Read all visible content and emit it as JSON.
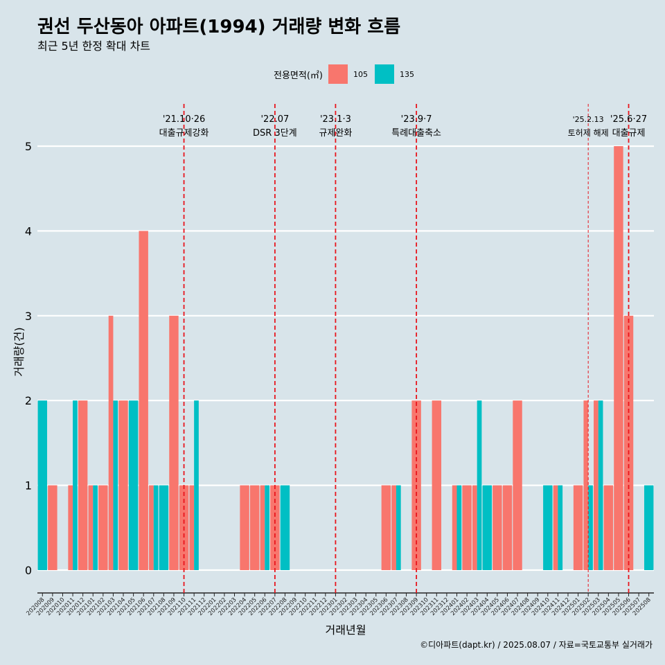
{
  "title": "권선 두산동아 아파트(1994) 거래량 변화 흐름",
  "subtitle": "최근 5년 한정 확대 차트",
  "legend": {
    "title": "전용면적(㎡)",
    "items": [
      {
        "label": "105",
        "color": "#f8766d"
      },
      {
        "label": "135",
        "color": "#00bfc4"
      }
    ]
  },
  "caption": "©디아파트(dapt.kr) / 2025.08.07 / 자료=국토교통부 실거래가",
  "chart_data": {
    "type": "bar",
    "stacking": "dodge",
    "xlabel": "거래년월",
    "ylabel": "거래량(건)",
    "ylim": [
      0,
      5
    ],
    "yticks": [
      0,
      1,
      2,
      3,
      4,
      5
    ],
    "grid": "horizontal",
    "legend_position": "top",
    "background": "#d8e4ea",
    "categories": [
      "202008",
      "202009",
      "202010",
      "202011",
      "202012",
      "202101",
      "202102",
      "202103",
      "202104",
      "202105",
      "202106",
      "202107",
      "202108",
      "202109",
      "202110",
      "202111",
      "202112",
      "202201",
      "202202",
      "202203",
      "202204",
      "202205",
      "202206",
      "202207",
      "202208",
      "202209",
      "202210",
      "202211",
      "202212",
      "202301",
      "202302",
      "202303",
      "202304",
      "202305",
      "202306",
      "202307",
      "202308",
      "202309",
      "202310",
      "202311",
      "202312",
      "202401",
      "202402",
      "202403",
      "202404",
      "202405",
      "202406",
      "202407",
      "202408",
      "202409",
      "202410",
      "202411",
      "202412",
      "202501",
      "202502",
      "202503",
      "202504",
      "202505",
      "202506",
      "202507",
      "202508"
    ],
    "series": [
      {
        "name": "105",
        "color": "#f8766d",
        "values": [
          0,
          1,
          0,
          1,
          2,
          1,
          1,
          3,
          2,
          0,
          4,
          1,
          0,
          3,
          1,
          1,
          0,
          0,
          0,
          0,
          1,
          1,
          1,
          1,
          0,
          0,
          0,
          0,
          0,
          0,
          0,
          0,
          0,
          0,
          1,
          1,
          0,
          2,
          0,
          2,
          0,
          1,
          1,
          1,
          0,
          1,
          1,
          2,
          0,
          0,
          0,
          1,
          0,
          1,
          2,
          2,
          1,
          5,
          3,
          0,
          0
        ]
      },
      {
        "name": "135",
        "color": "#00bfc4",
        "values": [
          2,
          0,
          0,
          2,
          0,
          1,
          0,
          2,
          0,
          2,
          0,
          1,
          1,
          0,
          0,
          2,
          0,
          0,
          0,
          0,
          0,
          0,
          1,
          0,
          1,
          0,
          0,
          0,
          0,
          0,
          0,
          0,
          0,
          0,
          0,
          1,
          0,
          0,
          0,
          0,
          0,
          1,
          0,
          2,
          1,
          0,
          0,
          0,
          0,
          0,
          1,
          1,
          0,
          0,
          1,
          2,
          0,
          0,
          0,
          0,
          1
        ]
      }
    ],
    "annotations": [
      {
        "x": "202110",
        "date": "'21.10·26",
        "label": "대출규제강화",
        "emphasis": true
      },
      {
        "x": "202207",
        "date": "'22.07",
        "label": "DSR 3단계",
        "emphasis": true
      },
      {
        "x": "202301",
        "date": "'23.1·3",
        "label": "규제완화",
        "emphasis": true
      },
      {
        "x": "202309",
        "date": "'23.9·7",
        "label": "특례대출축소",
        "emphasis": true
      },
      {
        "x": "202502",
        "date": "'25.2.13",
        "label": "토허제 해제",
        "emphasis": false
      },
      {
        "x": "202506",
        "date": "'25.6·27",
        "label": "대출규제",
        "emphasis": true
      }
    ]
  }
}
